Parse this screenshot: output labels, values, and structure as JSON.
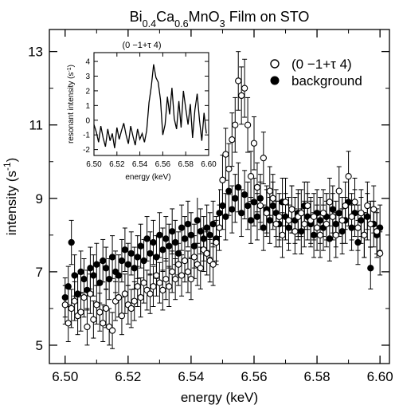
{
  "chart_data": {
    "type": "scatter",
    "title_parts": [
      {
        "t": "Bi",
        "s": "n"
      },
      {
        "t": "0.4",
        "s": "sub"
      },
      {
        "t": "Ca",
        "s": "n"
      },
      {
        "t": "0.6",
        "s": "sub"
      },
      {
        "t": "MnO",
        "s": "n"
      },
      {
        "t": "3",
        "s": "sub"
      },
      {
        "t": " Film on STO",
        "s": "n"
      }
    ],
    "xlabel": "energy (keV)",
    "ylabel_parts": [
      {
        "t": "intensity (s",
        "s": "n"
      },
      {
        "t": "-1",
        "s": "sup"
      },
      {
        "t": ")",
        "s": "n"
      }
    ],
    "xlim": [
      6.495,
      6.603
    ],
    "ylim": [
      4.5,
      13.6
    ],
    "xticks": [
      6.5,
      6.52,
      6.54,
      6.56,
      6.58,
      6.6
    ],
    "xtick_labels": [
      "6.50",
      "6.52",
      "6.54",
      "6.56",
      "6.58",
      "6.60"
    ],
    "yticks": [
      5,
      7,
      9,
      11,
      13
    ],
    "ytick_labels": [
      "5",
      "7",
      "9",
      "11",
      "13"
    ],
    "legend_position": "top-right",
    "series": [
      {
        "name": "(0  −1+τ  4)",
        "marker": "open-circle",
        "x": [
          6.5,
          6.501,
          6.502,
          6.503,
          6.504,
          6.505,
          6.506,
          6.507,
          6.508,
          6.509,
          6.51,
          6.511,
          6.512,
          6.513,
          6.514,
          6.515,
          6.516,
          6.517,
          6.518,
          6.519,
          6.52,
          6.521,
          6.522,
          6.523,
          6.524,
          6.525,
          6.526,
          6.527,
          6.528,
          6.529,
          6.53,
          6.531,
          6.532,
          6.533,
          6.534,
          6.535,
          6.536,
          6.537,
          6.538,
          6.539,
          6.54,
          6.541,
          6.542,
          6.543,
          6.544,
          6.545,
          6.546,
          6.547,
          6.548,
          6.549,
          6.55,
          6.551,
          6.552,
          6.553,
          6.554,
          6.555,
          6.556,
          6.557,
          6.558,
          6.559,
          6.56,
          6.561,
          6.562,
          6.563,
          6.564,
          6.565,
          6.566,
          6.567,
          6.568,
          6.569,
          6.57,
          6.571,
          6.572,
          6.573,
          6.574,
          6.575,
          6.576,
          6.577,
          6.578,
          6.579,
          6.58,
          6.581,
          6.582,
          6.583,
          6.584,
          6.585,
          6.586,
          6.587,
          6.588,
          6.589,
          6.59,
          6.591,
          6.592,
          6.593,
          6.594,
          6.595,
          6.596,
          6.597,
          6.598,
          6.599,
          6.6
        ],
        "y": [
          6.1,
          5.6,
          6.0,
          6.2,
          5.8,
          5.9,
          6.3,
          5.5,
          6.4,
          5.7,
          6.1,
          5.9,
          5.6,
          6.0,
          5.5,
          5.4,
          6.2,
          6.3,
          5.8,
          6.4,
          6.1,
          6.0,
          6.2,
          6.6,
          6.3,
          6.7,
          6.5,
          6.4,
          6.6,
          6.9,
          6.7,
          6.5,
          6.8,
          6.6,
          7.0,
          6.8,
          7.2,
          6.9,
          7.3,
          7.0,
          6.8,
          7.4,
          7.2,
          7.1,
          7.6,
          7.5,
          7.3,
          7.2,
          7.8,
          8.2,
          9.5,
          10.2,
          9.8,
          10.6,
          11.0,
          12.2,
          11.8,
          12.0,
          11.0,
          9.6,
          10.5,
          9.3,
          8.8,
          10.1,
          8.6,
          9.2,
          9.0,
          8.3,
          8.5,
          8.0,
          8.9,
          8.4,
          8.7,
          8.1,
          8.5,
          8.6,
          8.3,
          8.8,
          8.4,
          8.5,
          8.2,
          8.0,
          8.6,
          8.3,
          8.9,
          8.5,
          8.0,
          9.2,
          8.4,
          8.8,
          9.6,
          8.5,
          8.9,
          8.2,
          8.6,
          8.0,
          8.8,
          8.3,
          8.7,
          8.1,
          7.5
        ]
      },
      {
        "name": "background",
        "marker": "filled-circle",
        "x": [
          6.5,
          6.501,
          6.502,
          6.503,
          6.504,
          6.505,
          6.506,
          6.507,
          6.508,
          6.509,
          6.51,
          6.511,
          6.512,
          6.513,
          6.514,
          6.515,
          6.516,
          6.517,
          6.518,
          6.519,
          6.52,
          6.521,
          6.522,
          6.523,
          6.524,
          6.525,
          6.526,
          6.527,
          6.528,
          6.529,
          6.53,
          6.531,
          6.532,
          6.533,
          6.534,
          6.535,
          6.536,
          6.537,
          6.538,
          6.539,
          6.54,
          6.541,
          6.542,
          6.543,
          6.544,
          6.545,
          6.546,
          6.547,
          6.548,
          6.549,
          6.55,
          6.551,
          6.552,
          6.553,
          6.554,
          6.555,
          6.556,
          6.557,
          6.558,
          6.559,
          6.56,
          6.561,
          6.562,
          6.563,
          6.564,
          6.565,
          6.566,
          6.567,
          6.568,
          6.569,
          6.57,
          6.571,
          6.572,
          6.573,
          6.574,
          6.575,
          6.576,
          6.577,
          6.578,
          6.579,
          6.58,
          6.581,
          6.582,
          6.583,
          6.584,
          6.585,
          6.586,
          6.587,
          6.588,
          6.589,
          6.59,
          6.591,
          6.592,
          6.593,
          6.594,
          6.595,
          6.596,
          6.597,
          6.598,
          6.599,
          6.6
        ],
        "y": [
          6.3,
          6.6,
          7.8,
          6.9,
          6.4,
          7.0,
          6.8,
          6.5,
          7.1,
          6.9,
          7.2,
          6.7,
          7.3,
          7.1,
          6.8,
          7.4,
          7.0,
          6.9,
          7.3,
          7.6,
          7.2,
          7.5,
          7.1,
          7.4,
          7.7,
          7.3,
          7.9,
          7.5,
          7.8,
          7.4,
          8.0,
          7.6,
          7.9,
          7.7,
          8.1,
          7.8,
          7.5,
          8.2,
          7.9,
          8.3,
          8.0,
          7.7,
          8.4,
          8.1,
          7.9,
          8.2,
          8.0,
          8.3,
          7.9,
          8.6,
          8.8,
          8.5,
          9.2,
          8.7,
          9.0,
          9.3,
          8.6,
          9.1,
          8.8,
          8.4,
          8.9,
          8.5,
          9.0,
          8.2,
          8.7,
          8.4,
          8.8,
          8.6,
          8.3,
          8.9,
          8.5,
          8.2,
          8.7,
          8.4,
          8.6,
          8.1,
          8.8,
          8.5,
          8.3,
          8.0,
          8.6,
          8.4,
          8.2,
          8.5,
          7.9,
          8.7,
          8.3,
          8.6,
          8.1,
          8.4,
          8.9,
          8.2,
          8.6,
          7.8,
          8.4,
          8.0,
          8.5,
          7.1,
          8.3,
          8.0,
          8.2
        ]
      }
    ],
    "inset": {
      "title": "(0  −1+τ  4)",
      "xlabel": "energy (keV)",
      "ylabel_parts": [
        {
          "t": "resonant intensity (s",
          "s": "n"
        },
        {
          "t": "-1",
          "s": "sup"
        },
        {
          "t": ")",
          "s": "n"
        }
      ],
      "xlim": [
        6.5,
        6.6
      ],
      "ylim": [
        -2.4,
        4.6
      ],
      "xticks": [
        6.5,
        6.52,
        6.54,
        6.56,
        6.58,
        6.6
      ],
      "xtick_labels": [
        "6.50",
        "6.52",
        "6.54",
        "6.56",
        "6.58",
        "6.60"
      ],
      "yticks": [
        -2,
        -1,
        0,
        1,
        2,
        3,
        4
      ],
      "ytick_labels": [
        "-2",
        "-1",
        "0",
        "1",
        "2",
        "3",
        "4"
      ],
      "type": "line",
      "x": [
        6.5,
        6.502,
        6.504,
        6.506,
        6.508,
        6.51,
        6.512,
        6.514,
        6.516,
        6.518,
        6.52,
        6.522,
        6.524,
        6.526,
        6.528,
        6.53,
        6.532,
        6.534,
        6.536,
        6.538,
        6.54,
        6.542,
        6.544,
        6.546,
        6.548,
        6.55,
        6.552,
        6.554,
        6.556,
        6.558,
        6.56,
        6.562,
        6.564,
        6.566,
        6.568,
        6.57,
        6.572,
        6.574,
        6.576,
        6.578,
        6.58,
        6.582,
        6.584,
        6.586,
        6.588,
        6.59,
        6.592,
        6.594,
        6.596,
        6.598
      ],
      "y": [
        -0.3,
        -0.8,
        -1.5,
        -0.4,
        -1.2,
        -1.8,
        -0.6,
        -1.4,
        -0.9,
        -1.9,
        -0.5,
        -1.3,
        -0.7,
        -0.2,
        -1.0,
        -1.6,
        -0.4,
        -1.1,
        -1.7,
        -0.6,
        -1.3,
        -0.9,
        -1.5,
        -0.7,
        1.2,
        2.3,
        3.8,
        2.9,
        2.6,
        1.4,
        -1.0,
        -0.3,
        1.6,
        0.4,
        2.2,
        0.1,
        -0.6,
        1.3,
        -0.5,
        2.0,
        0.8,
        -0.3,
        1.1,
        -1.2,
        0.7,
        1.8,
        0.0,
        -1.4,
        0.5,
        -0.9
      ]
    }
  }
}
